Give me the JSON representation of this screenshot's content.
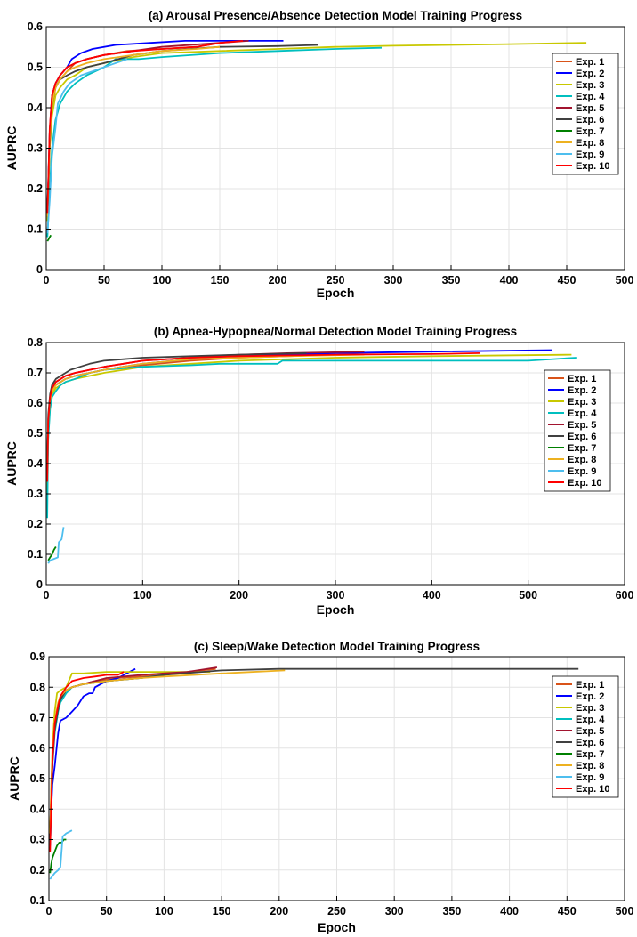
{
  "legend_labels": [
    "Exp. 1",
    "Exp. 2",
    "Exp. 3",
    "Exp. 4",
    "Exp. 5",
    "Exp. 6",
    "Exp. 7",
    "Exp. 8",
    "Exp. 9",
    "Exp. 10"
  ],
  "series_colors": [
    "#D95319",
    "#0000FF",
    "#C8C800",
    "#00BFBF",
    "#A2142F",
    "#404040",
    "#008000",
    "#EDB120",
    "#4DBEEE",
    "#FF0000"
  ],
  "chart_data": [
    {
      "type": "line",
      "title": "(a) Arousal Presence/Absence Detection Model Training Progress",
      "xlabel": "Epoch",
      "ylabel": "AUPRC",
      "xlim": [
        0,
        500
      ],
      "ylim": [
        0,
        0.6
      ],
      "xticks": [
        0,
        50,
        100,
        150,
        200,
        250,
        300,
        350,
        400,
        450,
        500
      ],
      "yticks": [
        0,
        0.1,
        0.2,
        0.3,
        0.4,
        0.5,
        0.6
      ],
      "grid": true,
      "legend_position": "right",
      "series": [
        {
          "name": "Exp. 1",
          "x": [
            1,
            3,
            5,
            8,
            12,
            18,
            25,
            35,
            50,
            70,
            100,
            130,
            150
          ],
          "y": [
            0.14,
            0.32,
            0.4,
            0.45,
            0.47,
            0.49,
            0.51,
            0.52,
            0.53,
            0.54,
            0.545,
            0.55,
            0.56
          ]
        },
        {
          "name": "Exp. 2",
          "x": [
            1,
            3,
            5,
            8,
            12,
            18,
            22,
            30,
            40,
            60,
            90,
            120,
            150,
            205
          ],
          "y": [
            0.14,
            0.34,
            0.43,
            0.46,
            0.48,
            0.5,
            0.52,
            0.535,
            0.545,
            0.555,
            0.56,
            0.565,
            0.565,
            0.565
          ]
        },
        {
          "name": "Exp. 3",
          "x": [
            1,
            3,
            5,
            8,
            12,
            18,
            25,
            35,
            50,
            75,
            100,
            150,
            200,
            250,
            300,
            350,
            400,
            467
          ],
          "y": [
            0.12,
            0.3,
            0.38,
            0.43,
            0.45,
            0.47,
            0.48,
            0.5,
            0.51,
            0.525,
            0.535,
            0.54,
            0.545,
            0.55,
            0.553,
            0.555,
            0.557,
            0.56
          ]
        },
        {
          "name": "Exp. 4",
          "x": [
            1,
            3,
            5,
            8,
            12,
            18,
            25,
            35,
            50,
            60,
            80,
            100,
            150,
            200,
            250,
            290
          ],
          "y": [
            0.08,
            0.2,
            0.3,
            0.37,
            0.41,
            0.44,
            0.46,
            0.48,
            0.5,
            0.52,
            0.52,
            0.525,
            0.535,
            0.54,
            0.545,
            0.548
          ]
        },
        {
          "name": "Exp. 5",
          "x": [
            1,
            3,
            5,
            8,
            12,
            18,
            25,
            35,
            50,
            75,
            100,
            150,
            175
          ],
          "y": [
            0.15,
            0.34,
            0.43,
            0.46,
            0.48,
            0.5,
            0.51,
            0.52,
            0.53,
            0.54,
            0.55,
            0.56,
            0.565
          ]
        },
        {
          "name": "Exp. 6",
          "x": [
            1,
            3,
            5,
            8,
            12,
            18,
            25,
            35,
            50,
            75,
            100,
            150,
            200,
            235
          ],
          "y": [
            0.13,
            0.31,
            0.41,
            0.45,
            0.47,
            0.48,
            0.49,
            0.5,
            0.51,
            0.53,
            0.54,
            0.55,
            0.552,
            0.555
          ]
        },
        {
          "name": "Exp. 7",
          "x": [
            1,
            2,
            3,
            4
          ],
          "y": [
            0.07,
            0.075,
            0.08,
            0.085
          ]
        },
        {
          "name": "Exp. 8",
          "x": [
            1,
            3,
            5,
            8,
            12,
            18,
            25,
            35,
            50,
            75,
            100,
            130,
            150
          ],
          "y": [
            0.13,
            0.32,
            0.41,
            0.45,
            0.47,
            0.49,
            0.5,
            0.51,
            0.52,
            0.53,
            0.54,
            0.545,
            0.55
          ]
        },
        {
          "name": "Exp. 9",
          "x": [
            1,
            3,
            5,
            8,
            10,
            15,
            20,
            25,
            30,
            40,
            50,
            60,
            70
          ],
          "y": [
            0.09,
            0.17,
            0.28,
            0.35,
            0.41,
            0.44,
            0.46,
            0.47,
            0.48,
            0.49,
            0.5,
            0.51,
            0.52
          ]
        },
        {
          "name": "Exp. 10",
          "x": [
            1,
            3,
            5,
            8,
            12,
            18,
            25,
            35,
            50,
            75,
            100,
            130,
            150,
            170
          ],
          "y": [
            0.14,
            0.35,
            0.43,
            0.46,
            0.48,
            0.5,
            0.51,
            0.52,
            0.53,
            0.54,
            0.545,
            0.55,
            0.56,
            0.565
          ]
        }
      ]
    },
    {
      "type": "line",
      "title": "(b) Apnea-Hypopnea/Normal Detection Model Training Progress",
      "xlabel": "Epoch",
      "ylabel": "AUPRC",
      "xlim": [
        0,
        600
      ],
      "ylim": [
        0,
        0.8
      ],
      "xticks": [
        0,
        100,
        200,
        300,
        400,
        500,
        600
      ],
      "yticks": [
        0,
        0.1,
        0.2,
        0.3,
        0.4,
        0.5,
        0.6,
        0.7,
        0.8
      ],
      "grid": true,
      "legend_position": "right",
      "series": [
        {
          "name": "Exp. 1",
          "x": [
            1,
            2,
            4,
            6,
            10,
            15,
            20,
            30,
            45,
            60,
            80,
            100,
            150,
            200,
            250,
            300
          ],
          "y": [
            0.33,
            0.52,
            0.6,
            0.64,
            0.66,
            0.67,
            0.68,
            0.69,
            0.7,
            0.71,
            0.72,
            0.725,
            0.74,
            0.75,
            0.755,
            0.76
          ]
        },
        {
          "name": "Exp. 2",
          "x": [
            1,
            2,
            4,
            6,
            10,
            15,
            20,
            30,
            45,
            60,
            80,
            100,
            150,
            200,
            250,
            300,
            400,
            525
          ],
          "y": [
            0.35,
            0.53,
            0.61,
            0.65,
            0.66,
            0.67,
            0.68,
            0.69,
            0.7,
            0.71,
            0.72,
            0.73,
            0.745,
            0.755,
            0.76,
            0.765,
            0.77,
            0.775
          ]
        },
        {
          "name": "Exp. 3",
          "x": [
            1,
            2,
            4,
            6,
            10,
            15,
            20,
            30,
            45,
            60,
            80,
            100,
            150,
            200,
            300,
            400,
            545
          ],
          "y": [
            0.3,
            0.5,
            0.59,
            0.63,
            0.65,
            0.66,
            0.67,
            0.68,
            0.69,
            0.7,
            0.71,
            0.72,
            0.73,
            0.74,
            0.75,
            0.755,
            0.76
          ]
        },
        {
          "name": "Exp. 4",
          "x": [
            1,
            2,
            4,
            6,
            10,
            15,
            20,
            30,
            45,
            60,
            80,
            100,
            150,
            180,
            200,
            240,
            245,
            300,
            400,
            500,
            550
          ],
          "y": [
            0.22,
            0.48,
            0.58,
            0.62,
            0.64,
            0.66,
            0.67,
            0.68,
            0.7,
            0.71,
            0.715,
            0.72,
            0.725,
            0.73,
            0.73,
            0.73,
            0.74,
            0.74,
            0.74,
            0.74,
            0.75
          ]
        },
        {
          "name": "Exp. 5",
          "x": [
            1,
            2,
            4,
            6,
            10,
            15,
            20,
            30,
            45,
            60,
            80,
            100,
            150,
            200,
            250,
            330
          ],
          "y": [
            0.36,
            0.55,
            0.62,
            0.65,
            0.67,
            0.68,
            0.69,
            0.7,
            0.71,
            0.72,
            0.73,
            0.74,
            0.75,
            0.76,
            0.765,
            0.77
          ]
        },
        {
          "name": "Exp. 6",
          "x": [
            1,
            2,
            4,
            6,
            10,
            15,
            20,
            25,
            35,
            45,
            60,
            80,
            100,
            150,
            200,
            270
          ],
          "y": [
            0.38,
            0.56,
            0.63,
            0.66,
            0.68,
            0.69,
            0.7,
            0.71,
            0.72,
            0.73,
            0.74,
            0.745,
            0.75,
            0.755,
            0.76,
            0.765
          ]
        },
        {
          "name": "Exp. 7",
          "x": [
            2,
            4,
            6,
            8,
            10
          ],
          "y": [
            0.08,
            0.09,
            0.1,
            0.115,
            0.125
          ]
        },
        {
          "name": "Exp. 8",
          "x": [
            1,
            2,
            4,
            6,
            10,
            15,
            20,
            30,
            45,
            60,
            80,
            100,
            150,
            200,
            250,
            330
          ],
          "y": [
            0.34,
            0.54,
            0.61,
            0.64,
            0.66,
            0.67,
            0.68,
            0.69,
            0.7,
            0.71,
            0.72,
            0.73,
            0.745,
            0.75,
            0.755,
            0.76
          ]
        },
        {
          "name": "Exp. 9",
          "x": [
            2,
            4,
            8,
            12,
            13,
            16,
            18
          ],
          "y": [
            0.07,
            0.08,
            0.085,
            0.09,
            0.14,
            0.15,
            0.19
          ]
        },
        {
          "name": "Exp. 10",
          "x": [
            1,
            2,
            4,
            6,
            10,
            15,
            20,
            30,
            45,
            60,
            80,
            100,
            150,
            200,
            300,
            400,
            450
          ],
          "y": [
            0.34,
            0.54,
            0.62,
            0.65,
            0.67,
            0.68,
            0.69,
            0.7,
            0.71,
            0.72,
            0.73,
            0.74,
            0.75,
            0.755,
            0.76,
            0.762,
            0.765
          ]
        }
      ]
    },
    {
      "type": "line",
      "title": "(c) Sleep/Wake Detection Model Training Progress",
      "xlabel": "Epoch",
      "ylabel": "AUPRC",
      "xlim": [
        0,
        500
      ],
      "ylim": [
        0.1,
        0.9
      ],
      "xticks": [
        0,
        50,
        100,
        150,
        200,
        250,
        300,
        350,
        400,
        450,
        500
      ],
      "yticks": [
        0.1,
        0.2,
        0.3,
        0.4,
        0.5,
        0.6,
        0.7,
        0.8,
        0.9
      ],
      "grid": true,
      "legend_position": "right",
      "series": [
        {
          "name": "Exp. 1",
          "x": [
            1,
            2,
            3,
            5,
            7,
            10,
            15,
            20,
            30,
            40,
            60,
            80,
            100,
            120,
            145
          ],
          "y": [
            0.32,
            0.45,
            0.55,
            0.66,
            0.72,
            0.76,
            0.79,
            0.8,
            0.81,
            0.82,
            0.83,
            0.835,
            0.84,
            0.85,
            0.86
          ]
        },
        {
          "name": "Exp. 2",
          "x": [
            1,
            2,
            3,
            5,
            8,
            10,
            15,
            20,
            25,
            30,
            35,
            38,
            40,
            45,
            50,
            55,
            60,
            65,
            70,
            75
          ],
          "y": [
            0.28,
            0.4,
            0.48,
            0.54,
            0.65,
            0.69,
            0.7,
            0.72,
            0.74,
            0.77,
            0.78,
            0.78,
            0.8,
            0.81,
            0.82,
            0.825,
            0.83,
            0.84,
            0.85,
            0.86
          ]
        },
        {
          "name": "Exp. 3",
          "x": [
            1,
            2,
            3,
            5,
            7,
            10,
            15,
            20,
            30,
            50,
            80,
            100,
            120,
            140
          ],
          "y": [
            0.3,
            0.48,
            0.6,
            0.72,
            0.78,
            0.79,
            0.8,
            0.845,
            0.845,
            0.85,
            0.85,
            0.85,
            0.85,
            0.85
          ]
        },
        {
          "name": "Exp. 4",
          "x": [
            1,
            2,
            3,
            5,
            8,
            10,
            15,
            20,
            30,
            50,
            80,
            100
          ],
          "y": [
            0.28,
            0.42,
            0.54,
            0.65,
            0.72,
            0.75,
            0.78,
            0.8,
            0.81,
            0.82,
            0.83,
            0.84
          ]
        },
        {
          "name": "Exp. 5",
          "x": [
            1,
            2,
            3,
            5,
            8,
            10,
            15,
            20,
            30,
            50,
            80,
            100,
            120,
            146
          ],
          "y": [
            0.3,
            0.44,
            0.56,
            0.67,
            0.73,
            0.76,
            0.79,
            0.8,
            0.81,
            0.83,
            0.84,
            0.845,
            0.85,
            0.865
          ]
        },
        {
          "name": "Exp. 6",
          "x": [
            1,
            2,
            3,
            5,
            8,
            10,
            15,
            20,
            30,
            50,
            80,
            100,
            150,
            200,
            300,
            400,
            460
          ],
          "y": [
            0.3,
            0.44,
            0.55,
            0.66,
            0.73,
            0.76,
            0.79,
            0.8,
            0.81,
            0.82,
            0.83,
            0.84,
            0.855,
            0.86,
            0.86,
            0.86,
            0.86
          ]
        },
        {
          "name": "Exp. 7",
          "x": [
            1,
            2,
            3,
            5,
            7,
            9,
            11,
            13,
            15
          ],
          "y": [
            0.19,
            0.22,
            0.24,
            0.26,
            0.28,
            0.29,
            0.29,
            0.3,
            0.3
          ]
        },
        {
          "name": "Exp. 8",
          "x": [
            1,
            2,
            3,
            5,
            8,
            10,
            15,
            20,
            30,
            50,
            80,
            100,
            150,
            205
          ],
          "y": [
            0.32,
            0.46,
            0.58,
            0.69,
            0.75,
            0.77,
            0.79,
            0.8,
            0.81,
            0.82,
            0.83,
            0.835,
            0.845,
            0.855
          ]
        },
        {
          "name": "Exp. 9",
          "x": [
            1,
            3,
            5,
            8,
            10,
            12,
            15,
            20
          ],
          "y": [
            0.17,
            0.18,
            0.19,
            0.2,
            0.21,
            0.31,
            0.32,
            0.33
          ]
        },
        {
          "name": "Exp. 10",
          "x": [
            1,
            2,
            3,
            5,
            8,
            10,
            15,
            20,
            30,
            40,
            50,
            60,
            65
          ],
          "y": [
            0.26,
            0.42,
            0.55,
            0.68,
            0.74,
            0.77,
            0.8,
            0.82,
            0.83,
            0.835,
            0.84,
            0.84,
            0.85
          ]
        }
      ]
    }
  ]
}
